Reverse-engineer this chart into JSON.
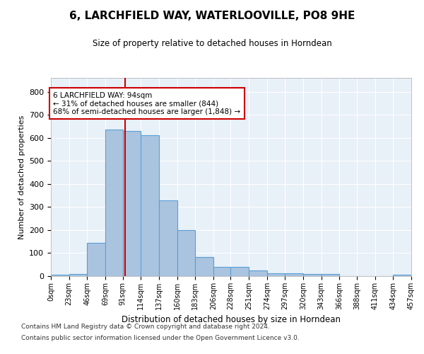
{
  "title": "6, LARCHFIELD WAY, WATERLOOVILLE, PO8 9HE",
  "subtitle": "Size of property relative to detached houses in Horndean",
  "xlabel": "Distribution of detached houses by size in Horndean",
  "ylabel": "Number of detached properties",
  "bar_color": "#aac4e0",
  "bar_edge_color": "#5a9fd4",
  "background_color": "#e8f0f8",
  "grid_color": "#ffffff",
  "annotation_box_color": "#cc0000",
  "vline_color": "#cc0000",
  "annotation_text": "6 LARCHFIELD WAY: 94sqm\n← 31% of detached houses are smaller (844)\n68% of semi-detached houses are larger (1,848) →",
  "footer_line1": "Contains HM Land Registry data © Crown copyright and database right 2024.",
  "footer_line2": "Contains public sector information licensed under the Open Government Licence v3.0.",
  "bin_edges": [
    0,
    23,
    46,
    69,
    91,
    114,
    137,
    160,
    183,
    206,
    228,
    251,
    274,
    297,
    320,
    343,
    366,
    388,
    411,
    434,
    457
  ],
  "bar_heights": [
    5,
    8,
    143,
    637,
    631,
    611,
    330,
    200,
    83,
    39,
    39,
    24,
    12,
    12,
    10,
    8,
    0,
    0,
    0,
    5
  ],
  "vline_x": 94,
  "ylim": [
    0,
    860
  ],
  "xlim": [
    0,
    457
  ],
  "ytick_values": [
    0,
    100,
    200,
    300,
    400,
    500,
    600,
    700,
    800
  ],
  "xtick_labels": [
    "0sqm",
    "23sqm",
    "46sqm",
    "69sqm",
    "91sqm",
    "114sqm",
    "137sqm",
    "160sqm",
    "183sqm",
    "206sqm",
    "228sqm",
    "251sqm",
    "274sqm",
    "297sqm",
    "320sqm",
    "343sqm",
    "366sqm",
    "388sqm",
    "411sqm",
    "434sqm",
    "457sqm"
  ],
  "xtick_positions": [
    0,
    23,
    46,
    69,
    91,
    114,
    137,
    160,
    183,
    206,
    228,
    251,
    274,
    297,
    320,
    343,
    366,
    388,
    411,
    434,
    457
  ],
  "figsize": [
    6.0,
    5.0
  ],
  "dpi": 100
}
